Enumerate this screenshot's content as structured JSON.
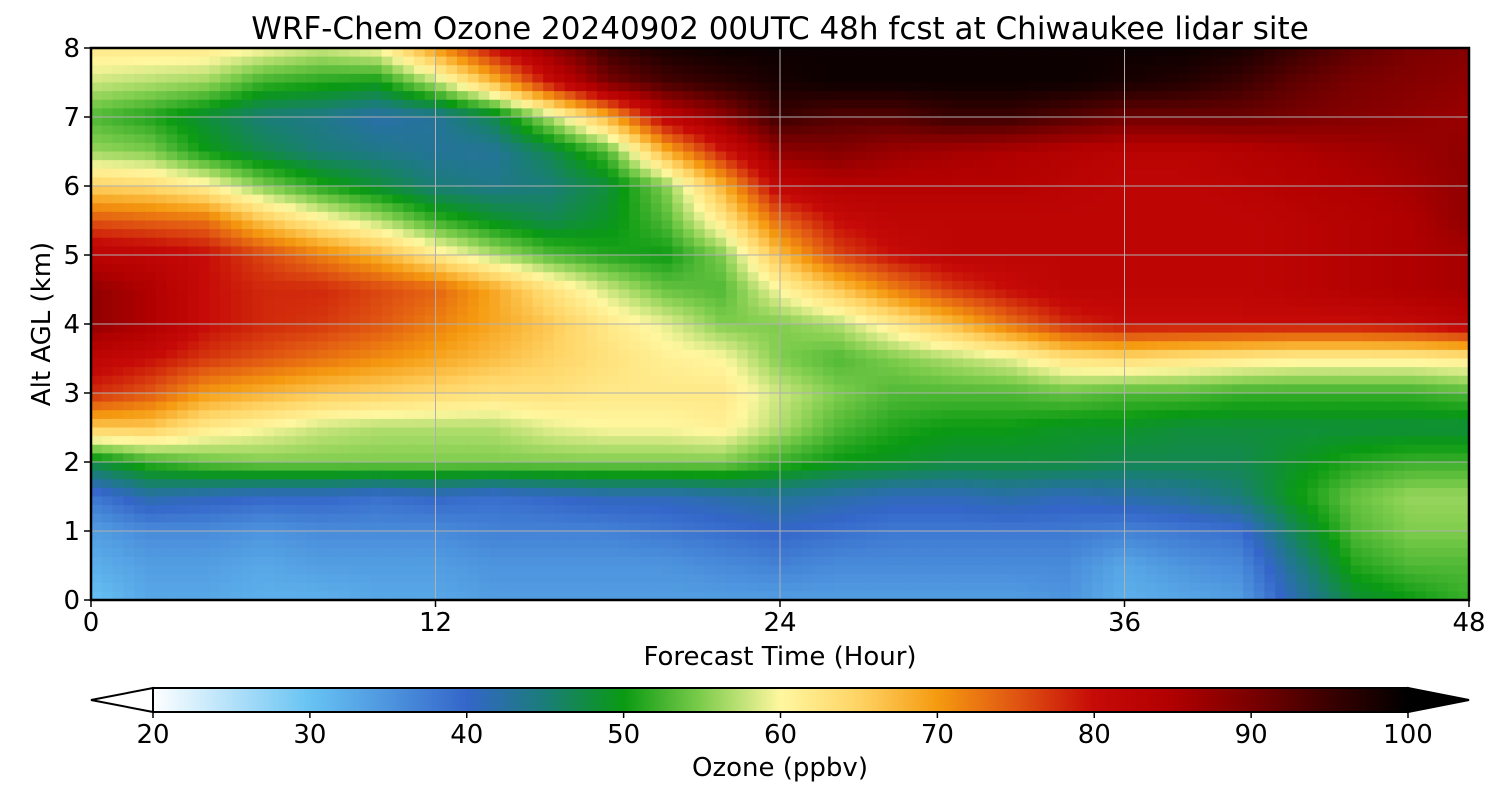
{
  "chart_data": {
    "type": "heatmap",
    "title": "WRF-Chem Ozone  20240902 00UTC 48h fcst at Chiwaukee lidar site",
    "xlabel": "Forecast Time (Hour)",
    "ylabel": "Alt AGL (km)",
    "xlim": [
      0,
      48
    ],
    "ylim": [
      0,
      8
    ],
    "x_ticks": [
      "0",
      "12",
      "24",
      "36",
      "48"
    ],
    "y_ticks": [
      "0",
      "1",
      "2",
      "3",
      "4",
      "5",
      "6",
      "7",
      "8"
    ],
    "grid": true,
    "colorbar": {
      "label": "Ozone  (ppbv)",
      "range": [
        20,
        100
      ],
      "ticks": [
        "20",
        "30",
        "40",
        "50",
        "60",
        "70",
        "80",
        "90",
        "100"
      ],
      "extend": "both",
      "anchors": [
        {
          "v": 20,
          "c": "#ffffff"
        },
        {
          "v": 30,
          "c": "#67c3f3"
        },
        {
          "v": 40,
          "c": "#3466c9"
        },
        {
          "v": 45,
          "c": "#1a7d78"
        },
        {
          "v": 50,
          "c": "#0a9a12"
        },
        {
          "v": 55,
          "c": "#7fcd4d"
        },
        {
          "v": 60,
          "c": "#fff7a0"
        },
        {
          "v": 65,
          "c": "#ffd364"
        },
        {
          "v": 70,
          "c": "#f59a10"
        },
        {
          "v": 75,
          "c": "#e05512"
        },
        {
          "v": 80,
          "c": "#c60a07"
        },
        {
          "v": 85,
          "c": "#b00000"
        },
        {
          "v": 90,
          "c": "#7a0000"
        },
        {
          "v": 95,
          "c": "#3a0000"
        },
        {
          "v": 100,
          "c": "#000000"
        }
      ]
    },
    "x": [
      0,
      2,
      4,
      6,
      8,
      10,
      12,
      14,
      16,
      18,
      20,
      22,
      24,
      26,
      28,
      30,
      32,
      34,
      36,
      38,
      40,
      42,
      44,
      46,
      48
    ],
    "y": [
      0.0,
      0.5,
      1.0,
      1.5,
      2.0,
      2.5,
      3.0,
      3.5,
      4.0,
      4.5,
      5.0,
      5.5,
      6.0,
      6.5,
      7.0,
      7.5,
      8.0
    ],
    "z": [
      [
        30,
        33,
        33,
        32,
        32,
        33,
        33,
        34,
        34,
        34,
        34,
        34,
        34,
        34,
        34,
        34,
        34,
        35,
        32,
        33,
        34,
        42,
        48,
        50,
        52
      ],
      [
        32,
        34,
        34,
        33,
        34,
        34,
        34,
        35,
        35,
        35,
        35,
        36,
        37,
        36,
        36,
        36,
        36,
        36,
        33,
        35,
        36,
        44,
        51,
        53,
        53
      ],
      [
        34,
        36,
        36,
        35,
        36,
        36,
        36,
        37,
        37,
        37,
        38,
        39,
        40,
        39,
        38,
        38,
        38,
        38,
        37,
        38,
        39,
        47,
        53,
        55,
        55
      ],
      [
        38,
        42,
        41,
        40,
        40,
        39,
        40,
        39,
        40,
        41,
        41,
        42,
        43,
        42,
        41,
        41,
        42,
        41,
        42,
        43,
        45,
        50,
        54,
        56,
        56
      ],
      [
        48,
        52,
        54,
        55,
        55,
        55,
        55,
        55,
        55,
        55,
        55,
        55,
        52,
        50,
        49,
        48,
        48,
        48,
        47,
        47,
        47,
        49,
        51,
        52,
        52
      ],
      [
        66,
        66,
        62,
        60,
        58,
        57,
        57,
        57,
        59,
        60,
        60,
        61,
        57,
        53,
        51,
        50,
        50,
        49,
        49,
        48,
        48,
        48,
        48,
        48,
        48
      ],
      [
        78,
        75,
        70,
        68,
        66,
        65,
        64,
        63,
        63,
        62,
        62,
        62,
        58,
        55,
        53,
        53,
        53,
        54,
        53,
        53,
        52,
        52,
        52,
        52,
        53
      ],
      [
        82,
        80,
        77,
        75,
        73,
        71,
        69,
        67,
        65,
        63,
        61,
        60,
        55,
        53,
        55,
        57,
        59,
        63,
        64,
        63,
        62,
        61,
        61,
        61,
        62
      ],
      [
        88,
        85,
        80,
        78,
        77,
        75,
        72,
        69,
        66,
        62,
        59,
        55,
        55,
        57,
        62,
        67,
        73,
        78,
        80,
        80,
        80,
        80,
        80,
        81,
        83
      ],
      [
        88,
        85,
        80,
        78,
        78,
        76,
        74,
        69,
        63,
        58,
        54,
        53,
        60,
        66,
        72,
        77,
        80,
        82,
        82,
        82,
        82,
        83,
        84,
        85,
        86
      ],
      [
        83,
        82,
        80,
        76,
        72,
        68,
        62,
        57,
        53,
        51,
        50,
        55,
        67,
        76,
        80,
        82,
        82,
        82,
        82,
        82,
        82,
        83,
        84,
        85,
        86
      ],
      [
        75,
        74,
        73,
        66,
        61,
        57,
        52,
        49,
        47,
        49,
        53,
        62,
        74,
        80,
        82,
        82,
        82,
        82,
        82,
        82,
        82,
        83,
        84,
        85,
        88
      ],
      [
        65,
        64,
        61,
        55,
        51,
        48,
        45,
        44,
        45,
        48,
        55,
        68,
        82,
        84,
        84,
        84,
        84,
        83,
        82,
        82,
        83,
        84,
        85,
        86,
        88
      ],
      [
        56,
        55,
        50,
        47,
        45,
        44,
        43,
        43,
        47,
        53,
        68,
        79,
        88,
        89,
        87,
        86,
        85,
        84,
        83,
        83,
        84,
        85,
        86,
        87,
        88
      ],
      [
        53,
        51,
        48,
        45,
        44,
        42,
        43,
        47,
        57,
        68,
        82,
        88,
        95,
        93,
        93,
        95,
        95,
        93,
        91,
        91,
        91,
        90,
        89,
        88,
        87
      ],
      [
        58,
        57,
        56,
        52,
        51,
        50,
        57,
        67,
        80,
        90,
        94,
        96,
        98,
        99,
        99,
        99,
        99,
        99,
        98,
        97,
        95,
        92,
        90,
        89,
        88
      ],
      [
        62,
        62,
        62,
        60,
        58,
        60,
        70,
        80,
        88,
        95,
        98,
        99,
        99,
        99,
        99,
        99,
        99,
        99,
        99,
        99,
        98,
        95,
        92,
        90,
        89
      ]
    ]
  }
}
